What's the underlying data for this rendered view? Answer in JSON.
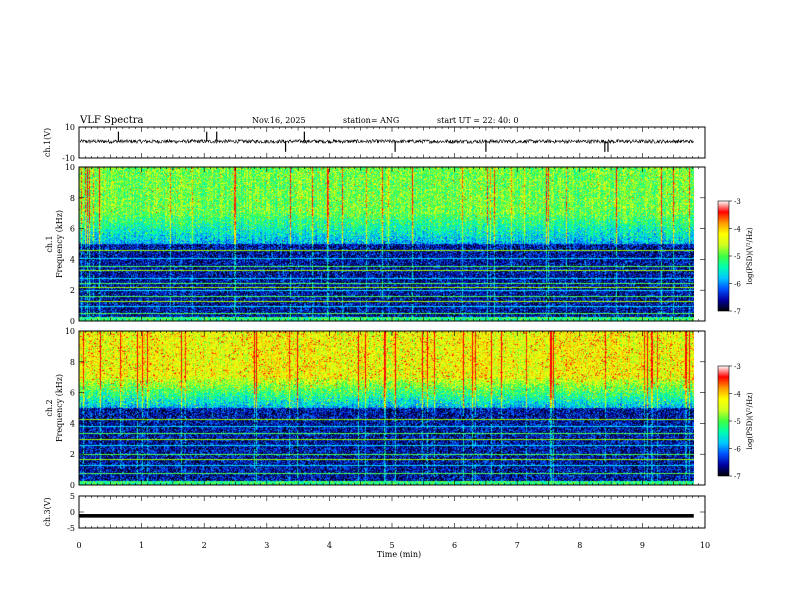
{
  "header": {
    "title": "VLF Spectra",
    "date": "Nov.16, 2025",
    "station": "station= ANG",
    "start": "start  UT =   22: 40: 0"
  },
  "chart_data": [
    {
      "type": "line",
      "name": "ch1-waveform",
      "ylabel": "ch.1(V)",
      "ylim": [
        -10,
        10
      ],
      "yticks": [
        "10",
        "-10"
      ],
      "baseline": 0,
      "noise_amplitude": 1.2,
      "spikes": [
        0.63,
        2.04,
        2.2,
        3.3,
        3.6,
        5.05,
        6.5,
        8.4,
        8.45
      ]
    },
    {
      "type": "heatmap",
      "name": "ch1-spectrogram",
      "ylabel": "ch.1\nFrequency (kHz)",
      "ylim": [
        0,
        10
      ],
      "yticks": [
        "0",
        "2",
        "4",
        "6",
        "8",
        "10"
      ],
      "colorbar": {
        "label": "log(PSD)(V²/Hz)",
        "range": [
          -7,
          -3
        ],
        "ticks": [
          "-3",
          "-4",
          "-5",
          "-6",
          "-7"
        ]
      },
      "lines_khz": [
        0.5,
        1.0,
        1.3,
        1.6,
        2.0,
        2.2,
        2.5,
        2.8,
        3.3,
        3.6,
        4.1,
        4.6
      ]
    },
    {
      "type": "heatmap",
      "name": "ch2-spectrogram",
      "ylabel": "ch.2\nFrequency (kHz)",
      "ylim": [
        0,
        10
      ],
      "yticks": [
        "0",
        "2",
        "4",
        "6",
        "8",
        "10"
      ],
      "colorbar": {
        "label": "log(PSD)(V²/Hz)",
        "range": [
          -7,
          -3
        ],
        "ticks": [
          "-3",
          "-4",
          "-5",
          "-6",
          "-7"
        ]
      },
      "lines_khz": [
        0.8,
        1.3,
        1.7,
        2.0,
        2.6,
        3.0,
        3.4,
        3.8,
        4.3
      ]
    },
    {
      "type": "line",
      "name": "ch3-waveform",
      "ylabel": "ch.3(V)",
      "ylim": [
        -5,
        5
      ],
      "yticks": [
        "5",
        "0",
        "-5"
      ],
      "baseline": -1.2,
      "noise_amplitude": 0.25
    }
  ],
  "xaxis": {
    "label": "Time  (min)",
    "range": [
      0,
      10
    ],
    "ticks": [
      "0",
      "1",
      "2",
      "3",
      "4",
      "5",
      "6",
      "7",
      "8",
      "9",
      "10"
    ],
    "data_end": 9.82
  },
  "colorscale": [
    "#000000",
    "#0000a0",
    "#0050ff",
    "#00c8ff",
    "#00ffb0",
    "#40ff40",
    "#d0ff20",
    "#ffff00",
    "#ff9900",
    "#ff0000",
    "#ffffff"
  ]
}
